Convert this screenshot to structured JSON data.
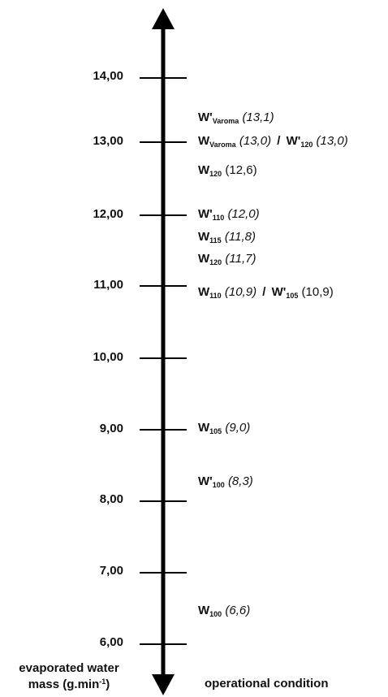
{
  "axis": {
    "ticks": [
      "14,00",
      "13,00",
      "12,00",
      "11,00",
      "10,00",
      "9,00",
      "8,00",
      "7,00",
      "6,00"
    ],
    "label_line1": "evaporated water",
    "label_line2_pre": "mass (g.min",
    "label_line2_sup": "-1",
    "label_line2_post": ")",
    "color": "#000000"
  },
  "operational_label": "operational condition",
  "conditions": [
    {
      "w": "W'",
      "sub": "Varoma",
      "val": "(13,1)",
      "italic": true
    },
    {
      "w": "W",
      "sub": "Varoma",
      "val": "(13,0)",
      "italic": true,
      "sep": "/",
      "w2": "W'",
      "sub2": "120",
      "val2": "(13,0)",
      "italic2": true
    },
    {
      "w": "W",
      "sub": "120",
      "val": "(12,6)",
      "italic": false
    },
    {
      "w": "W'",
      "sub": "110",
      "val": "(12,0)",
      "italic": true
    },
    {
      "w": "W",
      "sub": "115",
      "val": "(11,8)",
      "italic": true
    },
    {
      "w": "W",
      "sub": "120",
      "val": "(11,7)",
      "italic": true
    },
    {
      "w": "W",
      "sub": "110",
      "val": "(10,9)",
      "italic": true,
      "sep": "/",
      "w2": "W'",
      "sub2": "105",
      "val2": "(10,9)",
      "italic2": false
    },
    {
      "w": "W",
      "sub": "105",
      "val": "(9,0)",
      "italic": true
    },
    {
      "w": "W'",
      "sub": "100",
      "val": "(8,3)",
      "italic": true
    },
    {
      "w": "W",
      "sub": "100",
      "val": "(6,6)",
      "italic": true
    }
  ]
}
